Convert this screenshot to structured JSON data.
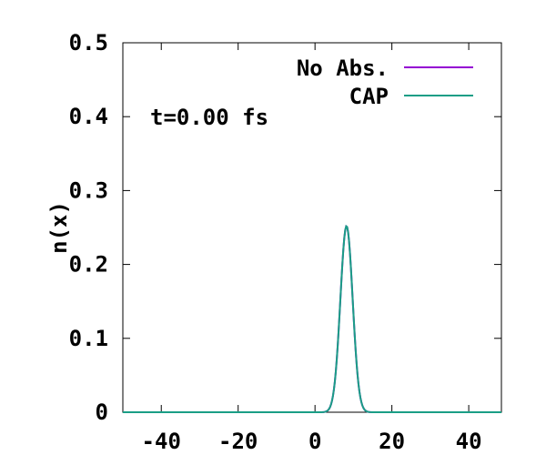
{
  "chart_data": {
    "type": "line",
    "title": "",
    "xlabel": "",
    "ylabel": "n(x)",
    "xlim": [
      -50,
      48.5
    ],
    "ylim": [
      0,
      0.5
    ],
    "xticks": [
      -40,
      -20,
      0,
      20,
      40
    ],
    "yticks": [
      0,
      0.1,
      0.2,
      0.3,
      0.4,
      0.5
    ],
    "ytick_labels": [
      "0",
      "0.1",
      "0.2",
      "0.3",
      "0.4",
      "0.5"
    ],
    "grid": false,
    "legend_position": "top-right",
    "annotation": "t=0.00 fs",
    "gaussian": {
      "center": 8.2,
      "amplitude": 0.252,
      "sigma": 1.6
    },
    "series": [
      {
        "name": "No Abs.",
        "color": "#9400d3"
      },
      {
        "name": "CAP",
        "color": "#1a9e86"
      }
    ]
  }
}
